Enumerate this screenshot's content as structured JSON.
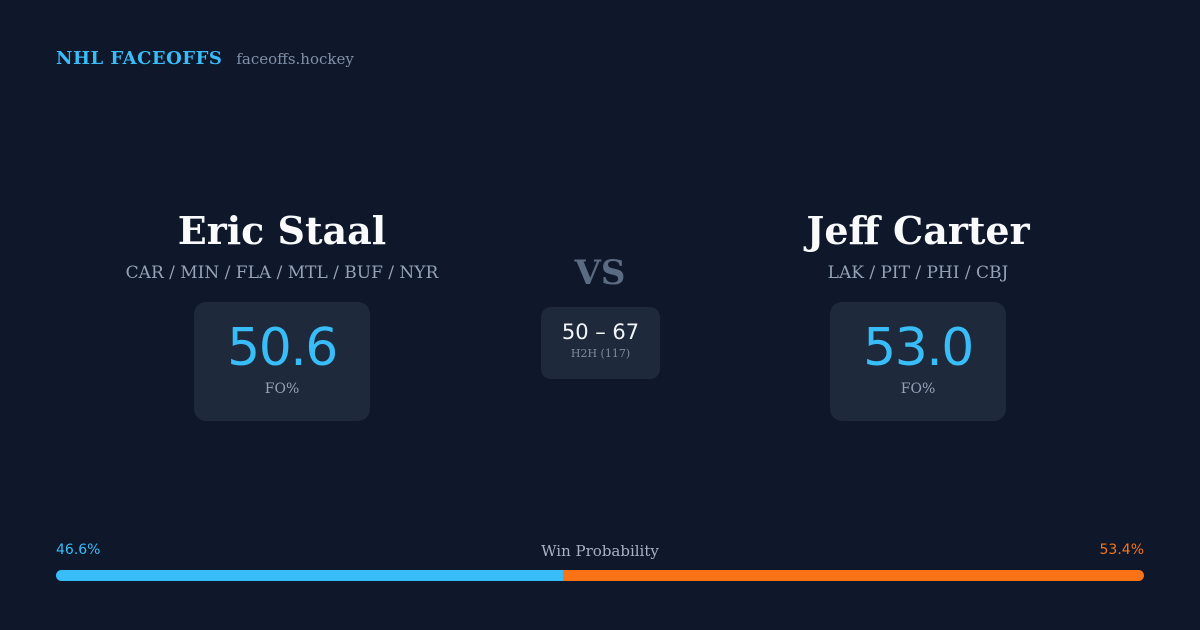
{
  "header": {
    "brand": "NHL FACEOFFS",
    "site": "faceoffs.hockey"
  },
  "players": {
    "left": {
      "name": "Eric Staal",
      "teams": "CAR / MIN / FLA / MTL / BUF / NYR",
      "fo_pct": "50.6",
      "fo_label": "FO%"
    },
    "right": {
      "name": "Jeff Carter",
      "teams": "LAK / PIT / PHI / CBJ",
      "fo_pct": "53.0",
      "fo_label": "FO%"
    }
  },
  "versus": {
    "label": "VS",
    "h2h_score": "50 – 67",
    "h2h_label": "H2H (117)"
  },
  "win_probability": {
    "title": "Win Probability",
    "left_label": "46.6%",
    "right_label": "53.4%",
    "left_fraction": 0.466,
    "right_fraction": 0.534
  },
  "colors": {
    "background": "#0f172a",
    "card": "#1e293b",
    "accent_blue": "#38bdf8",
    "accent_orange": "#f97316"
  }
}
